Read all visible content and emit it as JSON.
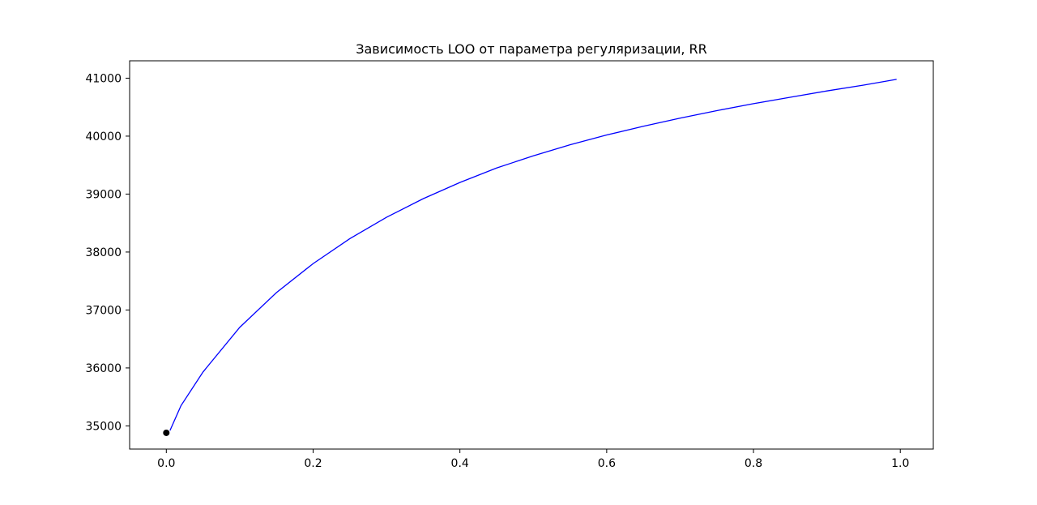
{
  "chart_data": {
    "type": "line",
    "title": "Зависимость LOO от параметра регуляризации, RR",
    "xlabel": "",
    "ylabel": "",
    "xlim": [
      -0.05,
      1.045
    ],
    "ylim": [
      34600,
      41300
    ],
    "x_ticks": [
      0.0,
      0.2,
      0.4,
      0.6,
      0.8,
      1.0
    ],
    "x_tick_labels": [
      "0.0",
      "0.2",
      "0.4",
      "0.6",
      "0.8",
      "1.0"
    ],
    "y_ticks": [
      35000,
      36000,
      37000,
      38000,
      39000,
      40000,
      41000
    ],
    "y_tick_labels": [
      "35000",
      "36000",
      "37000",
      "38000",
      "39000",
      "40000",
      "41000"
    ],
    "grid": false,
    "series": [
      {
        "color": "#0000ff",
        "x": [
          0.005,
          0.02,
          0.05,
          0.1,
          0.15,
          0.2,
          0.25,
          0.3,
          0.35,
          0.4,
          0.45,
          0.5,
          0.55,
          0.6,
          0.65,
          0.7,
          0.75,
          0.8,
          0.85,
          0.9,
          0.95,
          0.995
        ],
        "y": [
          34920,
          35350,
          35930,
          36700,
          37300,
          37800,
          38230,
          38600,
          38920,
          39200,
          39450,
          39660,
          39850,
          40020,
          40170,
          40310,
          40440,
          40560,
          40670,
          40780,
          40880,
          40980
        ]
      }
    ],
    "marker": {
      "x": 0.0,
      "y": 34880,
      "color": "#000000"
    }
  }
}
